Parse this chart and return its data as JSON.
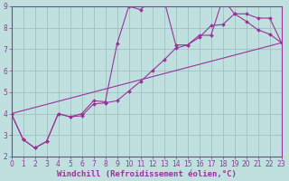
{
  "bg_color": "#c0e0e0",
  "line_color": "#993399",
  "grid_color": "#99bbbb",
  "xlabel": "Windchill (Refroidissement éolien,°C)",
  "xmin": 0,
  "xmax": 23,
  "ymin": 2,
  "ymax": 9,
  "line1_x": [
    0,
    1,
    2,
    3,
    4,
    5,
    6,
    7,
    8,
    9,
    10,
    11,
    12,
    13,
    14,
    15,
    16,
    17,
    18,
    19,
    20,
    21,
    22,
    23
  ],
  "line1_y": [
    4.0,
    2.8,
    2.4,
    2.7,
    4.0,
    3.85,
    4.0,
    4.6,
    4.55,
    7.25,
    9.0,
    8.85,
    9.3,
    9.3,
    7.2,
    7.2,
    7.65,
    7.65,
    9.35,
    8.65,
    8.65,
    8.45,
    8.45,
    7.3
  ],
  "line2_x": [
    0,
    1,
    2,
    3,
    4,
    5,
    6,
    7,
    8,
    9,
    10,
    11,
    12,
    13,
    14,
    15,
    16,
    17,
    18,
    19,
    20,
    21,
    22,
    23
  ],
  "line2_y": [
    4.0,
    2.8,
    2.4,
    2.7,
    4.0,
    3.85,
    3.9,
    4.45,
    4.5,
    4.6,
    5.05,
    5.5,
    6.0,
    6.5,
    7.05,
    7.2,
    7.55,
    8.1,
    8.15,
    8.65,
    8.3,
    7.9,
    7.7,
    7.3
  ],
  "line3_x": [
    0,
    23
  ],
  "line3_y": [
    4.0,
    7.3
  ],
  "tick_fontsize": 5.5,
  "label_fontsize": 6.5
}
